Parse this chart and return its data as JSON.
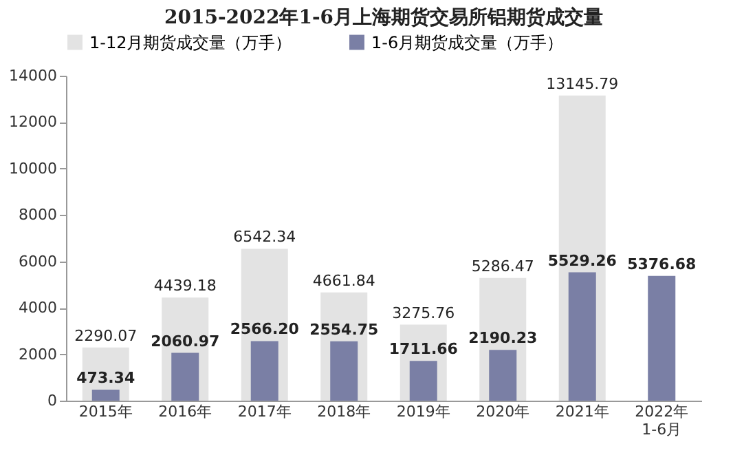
{
  "chart_data": {
    "type": "bar",
    "title": "2015-2022年1-6月上海期货交易所铝期货成交量",
    "categories": [
      "2015年",
      "2016年",
      "2017年",
      "2018年",
      "2019年",
      "2020年",
      "2021年",
      "2022年\n1-6月"
    ],
    "series": [
      {
        "name": "1-12月期货成交量（万手）",
        "color": "#e3e3e3",
        "values": [
          2290.07,
          4439.18,
          6542.34,
          4661.84,
          3275.76,
          5286.47,
          13145.79,
          null
        ],
        "value_labels": [
          "2290.07",
          "4439.18",
          "6542.34",
          "4661.84",
          "3275.76",
          "5286.47",
          "13145.79",
          null
        ]
      },
      {
        "name": "1-6月期货成交量（万手）",
        "color": "#7a7fa5",
        "values": [
          473.34,
          2060.97,
          2566.2,
          2554.75,
          1711.66,
          2190.23,
          5529.26,
          5376.68
        ],
        "value_labels": [
          "473.34",
          "2060.97",
          "2566.20",
          "2554.75",
          "1711.66",
          "2190.23",
          "5529.26",
          "5376.68"
        ]
      }
    ],
    "ylim": [
      0,
      14000
    ],
    "yticks": [
      0,
      2000,
      4000,
      6000,
      8000,
      10000,
      12000,
      14000
    ],
    "grid": false,
    "legend": "top"
  }
}
